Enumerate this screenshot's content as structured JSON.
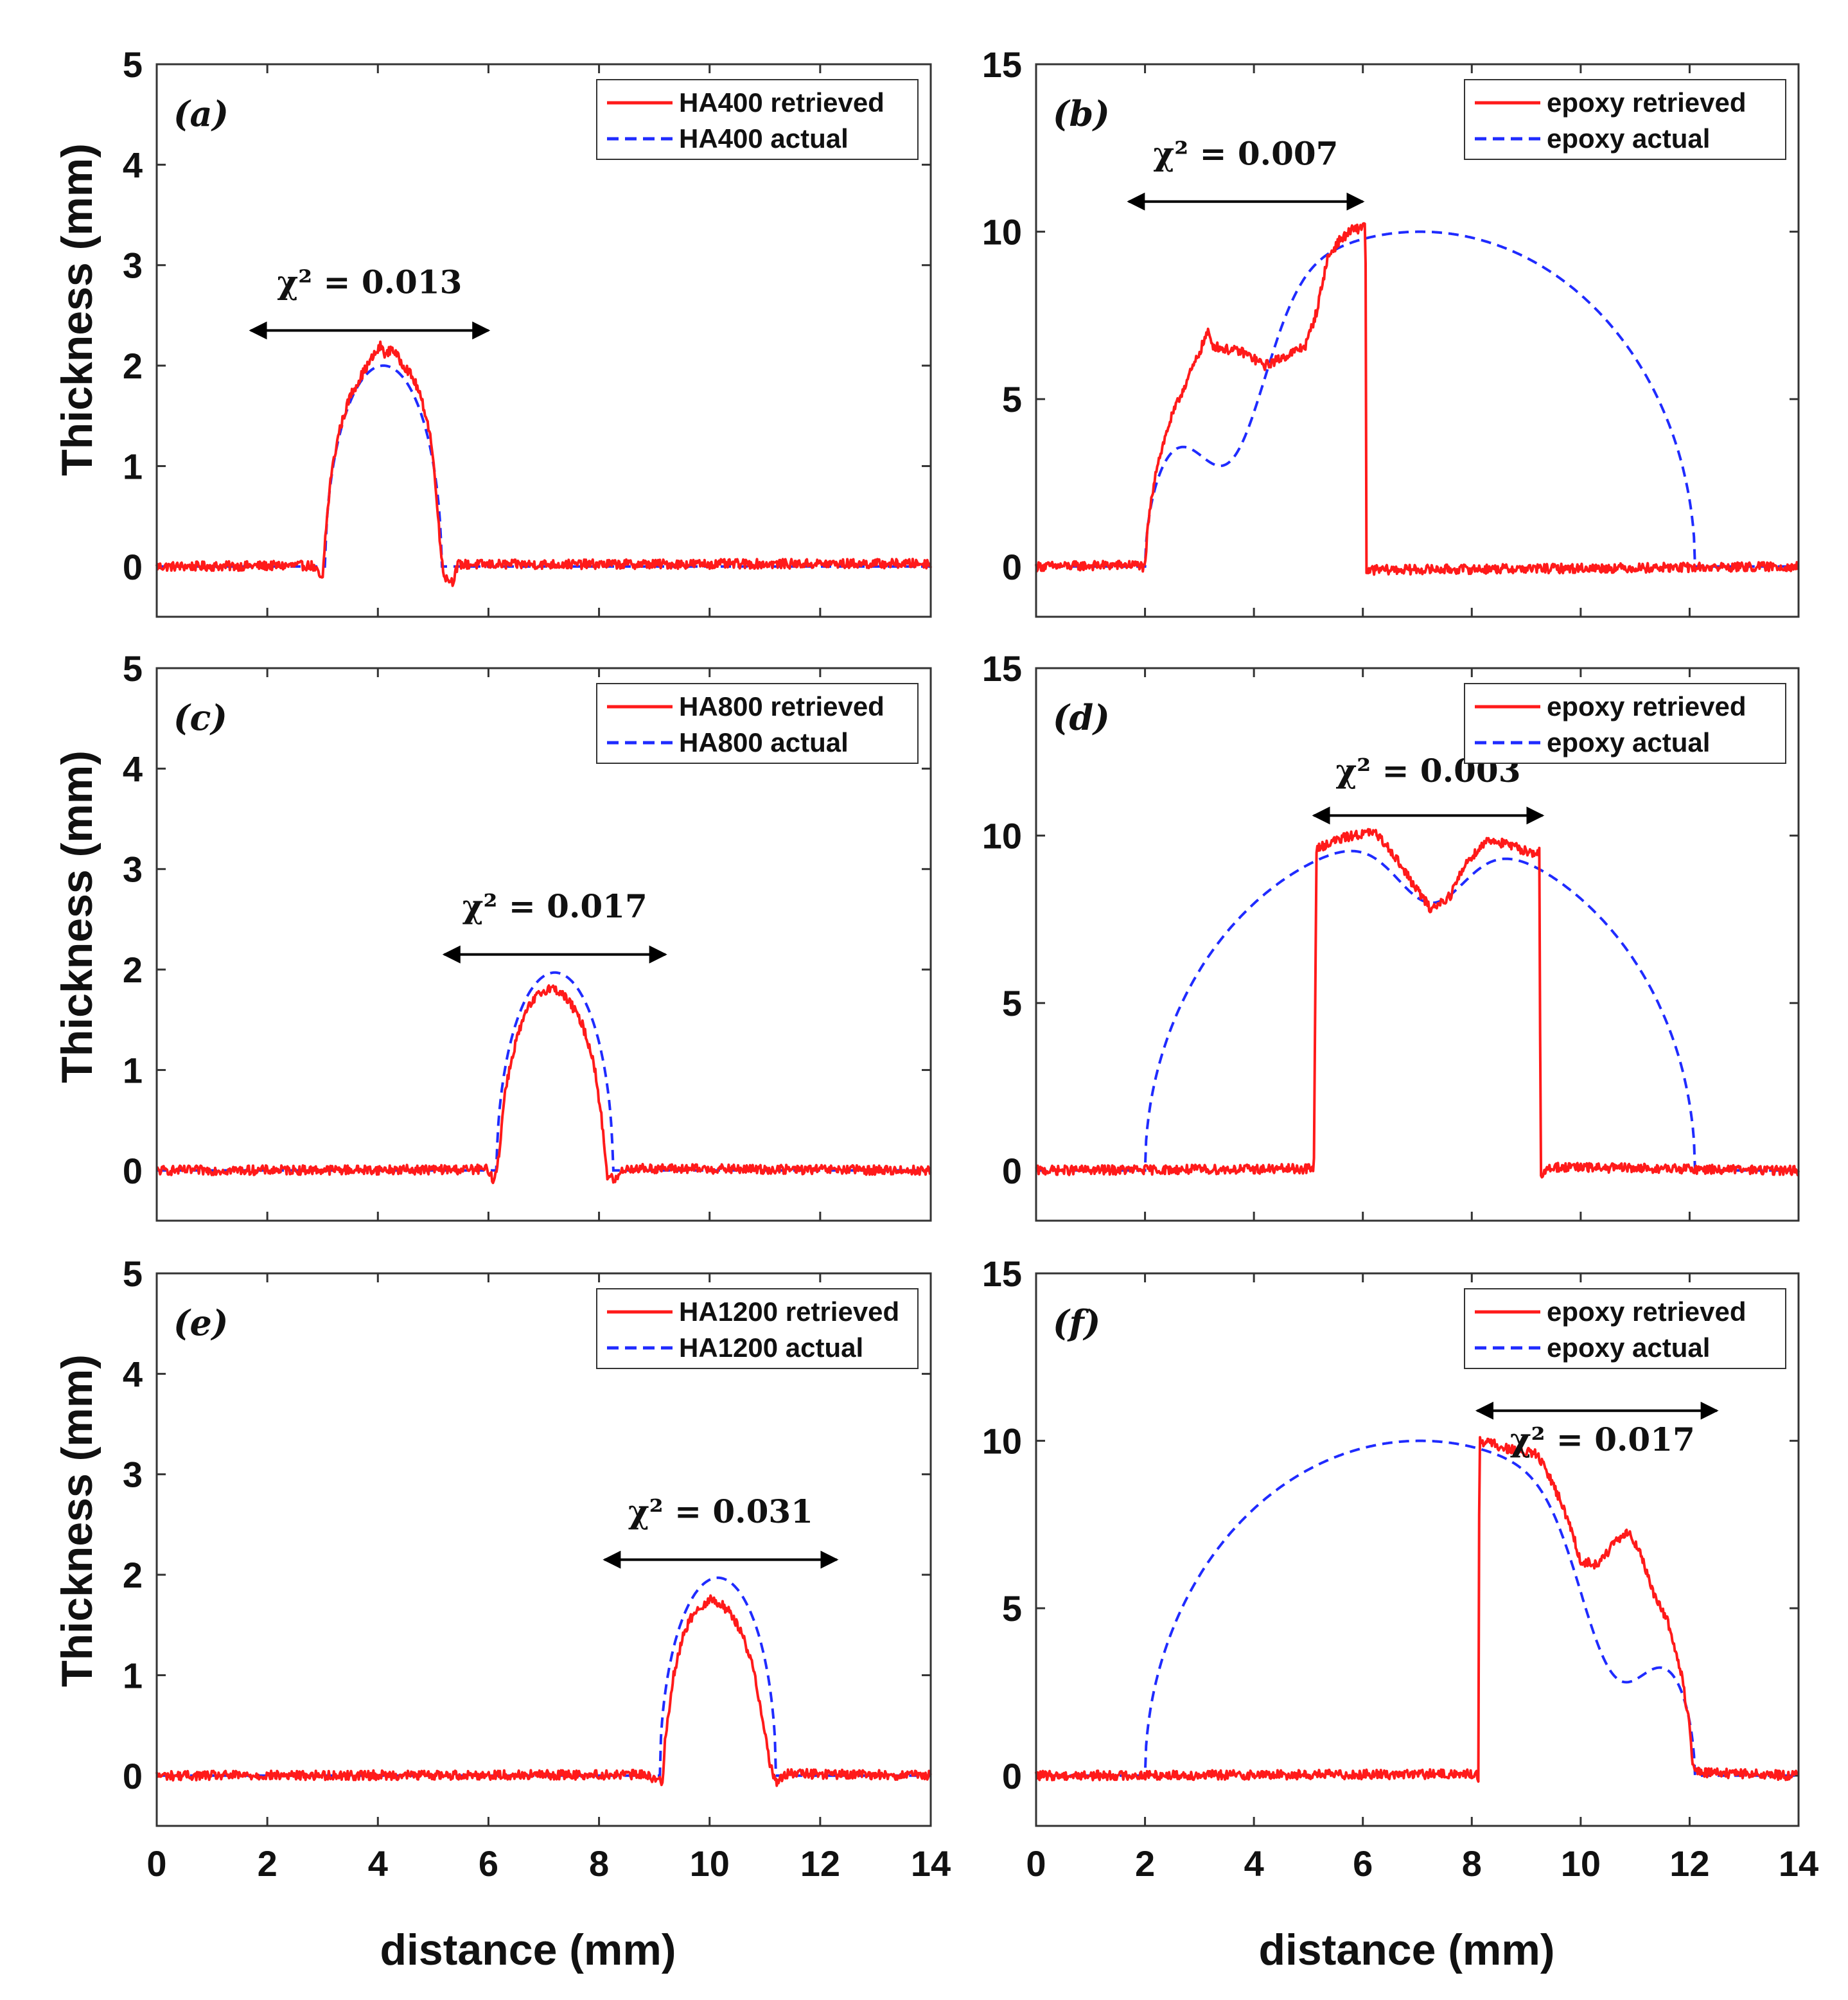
{
  "figure": {
    "x_axis_label": "distance (mm)",
    "y_axis_label": "Thickness (mm)",
    "colors": {
      "retrieved": "#ff1a1a",
      "actual": "#1f2bff",
      "axis": "#333333"
    }
  },
  "chart_data": [
    {
      "type": "line",
      "panel": "a",
      "panel_label": "(a)",
      "xlim": [
        0,
        14
      ],
      "ylim": [
        -0.5,
        5
      ],
      "xticks": [
        0,
        2,
        4,
        6,
        8,
        10,
        12,
        14
      ],
      "yticks": [
        0,
        1,
        2,
        3,
        4,
        5
      ],
      "xtick_labels": [
        "0",
        "2",
        "4",
        "6",
        "8",
        "10",
        "12",
        "14"
      ],
      "ytick_labels": [
        "0",
        "1",
        "2",
        "3",
        "4",
        "5"
      ],
      "show_xtick_labels": false,
      "legend": {
        "retrieved": "HA400 retrieved",
        "actual": "HA400 actual",
        "position": "top-right"
      },
      "chi2_label": "χ² = 0.013",
      "annotation": {
        "arrow_x": [
          1.7,
          6.0
        ],
        "arrow_y": 2.35,
        "text_x": 3.85,
        "text_y": 2.72
      },
      "actual": {
        "shape": "semi-ellipse",
        "center": 4.1,
        "half_width": 1.05,
        "peak": 2.0
      },
      "series": [
        {
          "name": "HA400 retrieved",
          "style": "solid",
          "points": [
            [
              0,
              0
            ],
            [
              2.8,
              0.01
            ],
            [
              2.9,
              -0.05
            ],
            [
              3.0,
              -0.15
            ],
            [
              3.05,
              0.3
            ],
            [
              3.15,
              0.9
            ],
            [
              3.3,
              1.35
            ],
            [
              3.5,
              1.7
            ],
            [
              3.7,
              1.9
            ],
            [
              3.9,
              2.08
            ],
            [
              4.0,
              2.15
            ],
            [
              4.05,
              2.2
            ],
            [
              4.15,
              2.1
            ],
            [
              4.25,
              2.18
            ],
            [
              4.4,
              2.05
            ],
            [
              4.55,
              1.95
            ],
            [
              4.7,
              1.8
            ],
            [
              4.85,
              1.55
            ],
            [
              4.95,
              1.3
            ],
            [
              5.05,
              0.8
            ],
            [
              5.12,
              0.25
            ],
            [
              5.2,
              -0.1
            ],
            [
              5.35,
              -0.15
            ],
            [
              5.45,
              0.02
            ],
            [
              14,
              0.03
            ]
          ]
        },
        {
          "name": "HA400 actual",
          "style": "dashed"
        }
      ]
    },
    {
      "type": "line",
      "panel": "b",
      "panel_label": "(b)",
      "xlim": [
        0,
        14
      ],
      "ylim": [
        -1.5,
        15
      ],
      "xticks": [
        0,
        2,
        4,
        6,
        8,
        10,
        12,
        14
      ],
      "yticks": [
        0,
        5,
        10,
        15
      ],
      "xtick_labels": [
        "0",
        "2",
        "4",
        "6",
        "8",
        "10",
        "12",
        "14"
      ],
      "ytick_labels": [
        "0",
        "5",
        "10",
        "15"
      ],
      "show_xtick_labels": false,
      "legend": {
        "retrieved": "epoxy retrieved",
        "actual": "epoxy actual",
        "position": "top-right"
      },
      "chi2_label": "χ² = 0.007",
      "annotation": {
        "arrow_x": [
          1.7,
          6.0
        ],
        "arrow_y": 10.9,
        "text_x": 3.85,
        "text_y": 12.0
      },
      "actual": {
        "shape": "semi-ellipse-with-dip",
        "center": 7.05,
        "half_width": 5.05,
        "peak": 10.0,
        "dip_center": 3.6,
        "dip_width": 0.9,
        "dip_depth": 4.1
      },
      "series": [
        {
          "name": "epoxy retrieved",
          "style": "solid",
          "points": [
            [
              0,
              0
            ],
            [
              1.9,
              0.05
            ],
            [
              2.0,
              -0.1
            ],
            [
              2.05,
              1.2
            ],
            [
              2.2,
              2.9
            ],
            [
              2.45,
              4.3
            ],
            [
              2.7,
              5.3
            ],
            [
              2.95,
              6.2
            ],
            [
              3.15,
              7.0
            ],
            [
              3.25,
              6.6
            ],
            [
              3.45,
              6.5
            ],
            [
              3.8,
              6.4
            ],
            [
              4.2,
              6.0
            ],
            [
              4.6,
              6.3
            ],
            [
              4.95,
              6.6
            ],
            [
              5.15,
              7.6
            ],
            [
              5.35,
              9.2
            ],
            [
              5.55,
              9.7
            ],
            [
              5.8,
              10.05
            ],
            [
              5.95,
              10.1
            ],
            [
              6.05,
              10.3
            ],
            [
              6.06,
              -0.2
            ],
            [
              6.2,
              -0.1
            ],
            [
              14,
              0
            ]
          ]
        },
        {
          "name": "epoxy actual",
          "style": "dashed"
        }
      ]
    },
    {
      "type": "line",
      "panel": "c",
      "panel_label": "(c)",
      "xlim": [
        0,
        14
      ],
      "ylim": [
        -0.5,
        5
      ],
      "xticks": [
        0,
        2,
        4,
        6,
        8,
        10,
        12,
        14
      ],
      "yticks": [
        0,
        1,
        2,
        3,
        4,
        5
      ],
      "xtick_labels": [
        "0",
        "2",
        "4",
        "6",
        "8",
        "10",
        "12",
        "14"
      ],
      "ytick_labels": [
        "0",
        "1",
        "2",
        "3",
        "4",
        "5"
      ],
      "show_xtick_labels": false,
      "legend": {
        "retrieved": "HA800 retrieved",
        "actual": "HA800 actual",
        "position": "top-right"
      },
      "chi2_label": "χ² = 0.017",
      "annotation": {
        "arrow_x": [
          5.2,
          9.2
        ],
        "arrow_y": 2.15,
        "text_x": 7.2,
        "text_y": 2.52
      },
      "actual": {
        "shape": "semi-ellipse",
        "center": 7.2,
        "half_width": 1.05,
        "peak": 1.97
      },
      "series": [
        {
          "name": "HA800 retrieved",
          "style": "solid",
          "points": [
            [
              0,
              0
            ],
            [
              6.0,
              0.01
            ],
            [
              6.1,
              -0.12
            ],
            [
              6.2,
              0.2
            ],
            [
              6.3,
              0.8
            ],
            [
              6.5,
              1.3
            ],
            [
              6.7,
              1.6
            ],
            [
              6.9,
              1.75
            ],
            [
              7.1,
              1.82
            ],
            [
              7.3,
              1.78
            ],
            [
              7.5,
              1.65
            ],
            [
              7.7,
              1.45
            ],
            [
              7.9,
              1.1
            ],
            [
              8.05,
              0.5
            ],
            [
              8.15,
              -0.05
            ],
            [
              8.3,
              -0.1
            ],
            [
              8.45,
              0.02
            ],
            [
              14,
              0
            ]
          ]
        },
        {
          "name": "HA800 actual",
          "style": "dashed"
        }
      ]
    },
    {
      "type": "line",
      "panel": "d",
      "panel_label": "(d)",
      "xlim": [
        0,
        14
      ],
      "ylim": [
        -1.5,
        15
      ],
      "xticks": [
        0,
        2,
        4,
        6,
        8,
        10,
        12,
        14
      ],
      "yticks": [
        0,
        5,
        10,
        15
      ],
      "xtick_labels": [
        "0",
        "2",
        "4",
        "6",
        "8",
        "10",
        "12",
        "14"
      ],
      "ytick_labels": [
        "0",
        "5",
        "10",
        "15"
      ],
      "show_xtick_labels": false,
      "legend": {
        "retrieved": "epoxy retrieved",
        "actual": "epoxy actual",
        "position": "top-right"
      },
      "chi2_label": "χ² = 0.003",
      "annotation": {
        "arrow_x": [
          5.1,
          9.3
        ],
        "arrow_y": 10.6,
        "text_x": 7.2,
        "text_y": 11.6
      },
      "actual": {
        "shape": "semi-ellipse-with-dip",
        "center": 7.05,
        "half_width": 5.05,
        "peak": 10.0,
        "dip_center": 7.25,
        "dip_width": 0.9,
        "dip_depth": 2.0
      },
      "series": [
        {
          "name": "epoxy retrieved",
          "style": "solid",
          "points": [
            [
              0,
              0
            ],
            [
              5.1,
              0.05
            ],
            [
              5.15,
              9.6
            ],
            [
              5.4,
              9.8
            ],
            [
              5.8,
              10.0
            ],
            [
              6.2,
              10.1
            ],
            [
              6.5,
              9.6
            ],
            [
              6.9,
              8.6
            ],
            [
              7.25,
              7.8
            ],
            [
              7.6,
              8.2
            ],
            [
              7.9,
              9.2
            ],
            [
              8.3,
              9.9
            ],
            [
              8.7,
              9.7
            ],
            [
              9.1,
              9.5
            ],
            [
              9.25,
              9.5
            ],
            [
              9.26,
              -0.3
            ],
            [
              9.4,
              0.1
            ],
            [
              14,
              0
            ]
          ]
        },
        {
          "name": "epoxy actual",
          "style": "dashed"
        }
      ]
    },
    {
      "type": "line",
      "panel": "e",
      "panel_label": "(e)",
      "xlim": [
        0,
        14
      ],
      "ylim": [
        -0.5,
        5
      ],
      "xticks": [
        0,
        2,
        4,
        6,
        8,
        10,
        12,
        14
      ],
      "yticks": [
        0,
        1,
        2,
        3,
        4,
        5
      ],
      "xtick_labels": [
        "0",
        "2",
        "4",
        "6",
        "8",
        "10",
        "12",
        "14"
      ],
      "ytick_labels": [
        "0",
        "1",
        "2",
        "3",
        "4",
        "5"
      ],
      "show_xtick_labels": true,
      "legend": {
        "retrieved": "HA1200 retrieved",
        "actual": "HA1200 actual",
        "position": "top-right"
      },
      "chi2_label": "χ² = 0.031",
      "annotation": {
        "arrow_x": [
          8.1,
          12.3
        ],
        "arrow_y": 2.15,
        "text_x": 10.2,
        "text_y": 2.52
      },
      "actual": {
        "shape": "semi-ellipse",
        "center": 10.15,
        "half_width": 1.05,
        "peak": 1.97
      },
      "series": [
        {
          "name": "HA1200 retrieved",
          "style": "solid",
          "points": [
            [
              0,
              0
            ],
            [
              8.9,
              0.01
            ],
            [
              9.0,
              -0.05
            ],
            [
              9.15,
              -0.05
            ],
            [
              9.2,
              0.4
            ],
            [
              9.35,
              1.0
            ],
            [
              9.55,
              1.45
            ],
            [
              9.75,
              1.65
            ],
            [
              10.0,
              1.75
            ],
            [
              10.2,
              1.72
            ],
            [
              10.4,
              1.6
            ],
            [
              10.6,
              1.4
            ],
            [
              10.8,
              1.05
            ],
            [
              10.95,
              0.6
            ],
            [
              11.1,
              0.1
            ],
            [
              11.2,
              -0.07
            ],
            [
              11.4,
              0.02
            ],
            [
              14,
              0
            ]
          ]
        },
        {
          "name": "HA1200 actual",
          "style": "dashed"
        }
      ]
    },
    {
      "type": "line",
      "panel": "f",
      "panel_label": "(f)",
      "xlim": [
        0,
        14
      ],
      "ylim": [
        -1.5,
        15
      ],
      "xticks": [
        0,
        2,
        4,
        6,
        8,
        10,
        12,
        14
      ],
      "yticks": [
        0,
        5,
        10,
        15
      ],
      "xtick_labels": [
        "0",
        "2",
        "4",
        "6",
        "8",
        "10",
        "12",
        "14"
      ],
      "ytick_labels": [
        "0",
        "5",
        "10",
        "15"
      ],
      "show_xtick_labels": true,
      "legend": {
        "retrieved": "epoxy retrieved",
        "actual": "epoxy actual",
        "position": "top-right"
      },
      "chi2_label": "χ² = 0.017",
      "annotation": {
        "arrow_x": [
          8.1,
          12.5
        ],
        "arrow_y": 10.9,
        "text_x": 10.4,
        "text_y": 9.7
      },
      "actual": {
        "shape": "semi-ellipse-with-dip",
        "center": 7.05,
        "half_width": 5.05,
        "peak": 10.0,
        "dip_center": 10.6,
        "dip_width": 0.9,
        "dip_depth": 4.1
      },
      "series": [
        {
          "name": "epoxy retrieved",
          "style": "solid",
          "points": [
            [
              0,
              0
            ],
            [
              8.1,
              0.05
            ],
            [
              8.12,
              -0.2
            ],
            [
              8.14,
              10.0
            ],
            [
              8.4,
              9.9
            ],
            [
              8.8,
              9.7
            ],
            [
              9.2,
              9.6
            ],
            [
              9.5,
              8.7
            ],
            [
              9.8,
              7.5
            ],
            [
              10.0,
              6.4
            ],
            [
              10.3,
              6.3
            ],
            [
              10.6,
              6.9
            ],
            [
              10.9,
              7.3
            ],
            [
              11.1,
              6.6
            ],
            [
              11.3,
              5.6
            ],
            [
              11.6,
              4.6
            ],
            [
              11.85,
              3.0
            ],
            [
              12.0,
              1.5
            ],
            [
              12.05,
              0.3
            ],
            [
              12.2,
              0.1
            ],
            [
              14,
              0
            ]
          ]
        },
        {
          "name": "epoxy actual",
          "style": "dashed"
        }
      ]
    }
  ]
}
